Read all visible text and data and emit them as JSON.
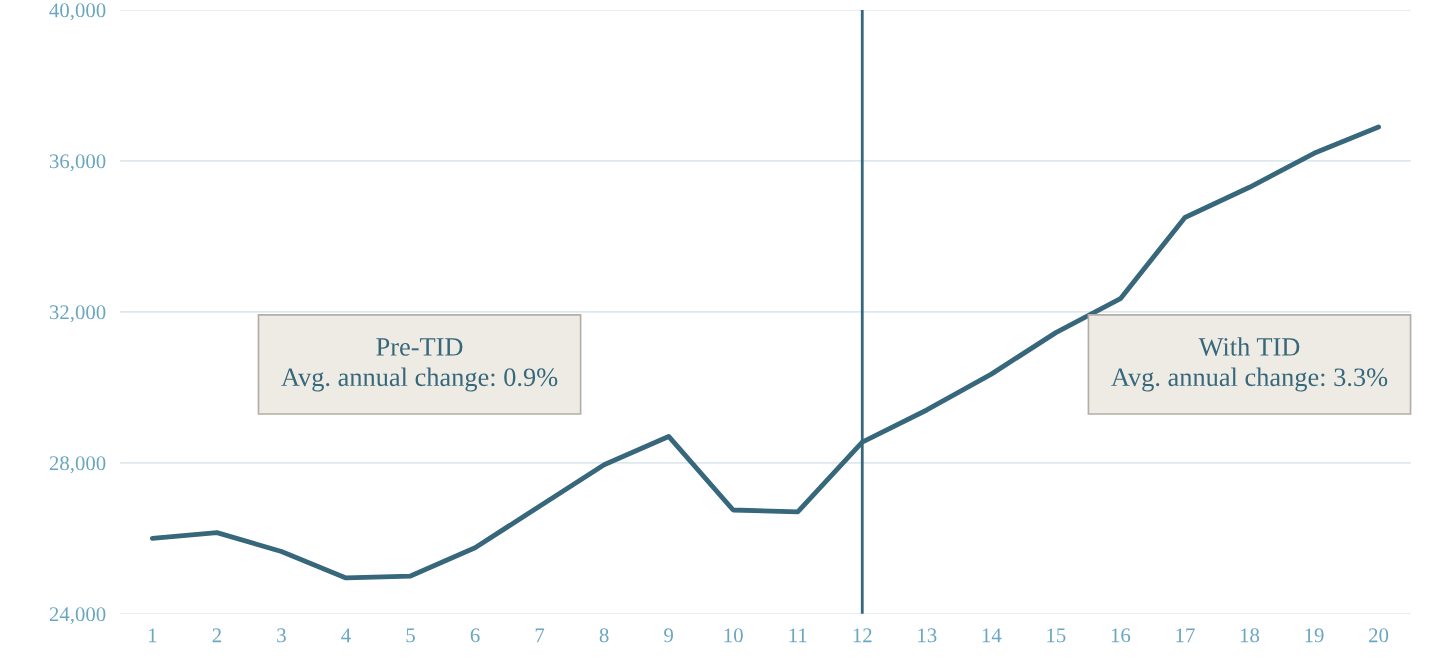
{
  "chart_data": {
    "type": "line",
    "x": [
      1,
      2,
      3,
      4,
      5,
      6,
      7,
      8,
      9,
      10,
      11,
      12,
      13,
      14,
      15,
      16,
      17,
      18,
      19,
      20
    ],
    "series": [
      {
        "color": "#36677a",
        "values": [
          26000,
          26150,
          25650,
          24950,
          25000,
          25750,
          26850,
          27950,
          28700,
          26750,
          26700,
          28550,
          29400,
          30350,
          31450,
          32350,
          34500,
          35300,
          36200,
          36900
        ]
      }
    ],
    "xlim": [
      0.5,
      20.5
    ],
    "xticks": [
      1,
      2,
      3,
      4,
      5,
      6,
      7,
      8,
      9,
      10,
      11,
      12,
      13,
      14,
      15,
      16,
      17,
      18,
      19,
      20
    ],
    "ylim": [
      24000,
      40000
    ],
    "yticks": [
      {
        "value": 24000,
        "label": "24,000"
      },
      {
        "value": 28000,
        "label": "28,000"
      },
      {
        "value": 32000,
        "label": "32,000"
      },
      {
        "value": 36000,
        "label": "36,000"
      },
      {
        "value": 40000,
        "label": "40,000"
      }
    ],
    "grid": "y",
    "marker": "none",
    "line_style": "solid",
    "ref_lines": [
      {
        "axis": "x",
        "value": 12,
        "color": "#36677a"
      }
    ],
    "annotations": [
      "Pre-TID\nAvg. annual change: 0.9%",
      "With TID\nAvg. annual change: 3.3%"
    ]
  }
}
